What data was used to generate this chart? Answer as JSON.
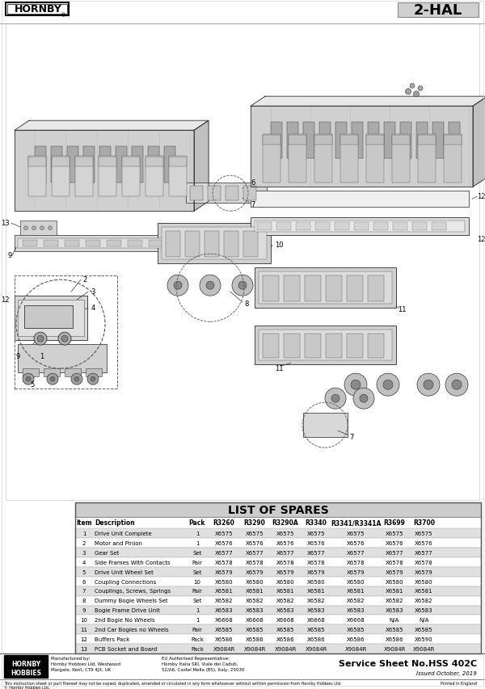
{
  "title_model": "2-HAL",
  "hornby_logo_text": "HORNBY®",
  "list_of_spares_title": "LIST OF SPARES",
  "table_headers": [
    "Item",
    "Description",
    "Pack",
    "R3260",
    "R3290",
    "R3290A",
    "R3340",
    "R3341/R3341A",
    "R3699",
    "R3700"
  ],
  "table_rows": [
    [
      "1",
      "Drive Unit Complete",
      "1",
      "X6575",
      "X6575",
      "X6575",
      "X6575",
      "X6575",
      "X6575",
      "X6575"
    ],
    [
      "2",
      "Motor and Pinion",
      "1",
      "X6576",
      "X6576",
      "X6576",
      "X6576",
      "X6576",
      "X6576",
      "X6576"
    ],
    [
      "3",
      "Gear Set",
      "Set",
      "X6577",
      "X6577",
      "X6577",
      "X6577",
      "X6577",
      "X6577",
      "X6577"
    ],
    [
      "4",
      "Side Frames With Contacts",
      "Pair",
      "X6578",
      "X6578",
      "X6578",
      "X6578",
      "X6578",
      "X6578",
      "X6578"
    ],
    [
      "5",
      "Drive Unit Wheel Set",
      "Set",
      "X6579",
      "X6579",
      "X6579",
      "X6579",
      "X6579",
      "X6579",
      "X6579"
    ],
    [
      "6",
      "Coupling Connections",
      "10",
      "X6580",
      "X6580",
      "X6580",
      "X6580",
      "X6580",
      "X6580",
      "X6580"
    ],
    [
      "7",
      "Couplings, Screws, Springs",
      "Pair",
      "X6581",
      "X6581",
      "X6581",
      "X6581",
      "X6581",
      "X6581",
      "X6581"
    ],
    [
      "8",
      "Dummy Bogie Wheels Set",
      "Set",
      "X6582",
      "X6582",
      "X6582",
      "X6582",
      "X6582",
      "X6582",
      "X6582"
    ],
    [
      "9",
      "Bogie Frame Drive Unit",
      "1",
      "X6583",
      "X6583",
      "X6583",
      "X6583",
      "X6583",
      "X6583",
      "X6583"
    ],
    [
      "10",
      "2nd Bogie No Wheels",
      "1",
      "X6668",
      "X6668",
      "X6668",
      "X6668",
      "X6668",
      "N/A",
      "N/A"
    ],
    [
      "11",
      "2nd Car Bogies no Wheels",
      "Pair",
      "X6585",
      "X6585",
      "X6585",
      "X6585",
      "X6585",
      "X6585",
      "X6585"
    ],
    [
      "12",
      "Buffers Pack",
      "Pack",
      "X6586",
      "X6586",
      "X6586",
      "X6586",
      "X6586",
      "X6586",
      "X6590"
    ],
    [
      "13",
      "PCB Socket and Board",
      "Pack",
      "X9084R",
      "X9084R",
      "X9084R",
      "X9084R",
      "X9084R",
      "X9084R",
      "X9084R"
    ]
  ],
  "footer_manufactured": "Manufactured by:\nHornby Hobbies Ltd, Westwood\nMargate, Kent, CT9 4JX, UK",
  "footer_eu": "EU Authorised Representative:\nHornby Italia SRI, Viale dei Caduti,\n52/A6, Castel Mella (BS), Italy, 25030",
  "footer_service_sheet": "Service Sheet No.HSS 402C",
  "footer_issued": "Issued October, 2019",
  "footer_copyright": "This instruction sheet or part thereof may not be copied, duplicated, amended or circulated in any form whatsoever without written permission from Hornby Hobbies Ltd.",
  "footer_printed": "Printed in England",
  "footer_copyright2": "© Hornby Hobbies Ltd.",
  "bg_color": "#ffffff",
  "table_header_bg": "#cccccc",
  "table_alt_row_bg": "#e0e0e0",
  "diagram_border": "#999999"
}
